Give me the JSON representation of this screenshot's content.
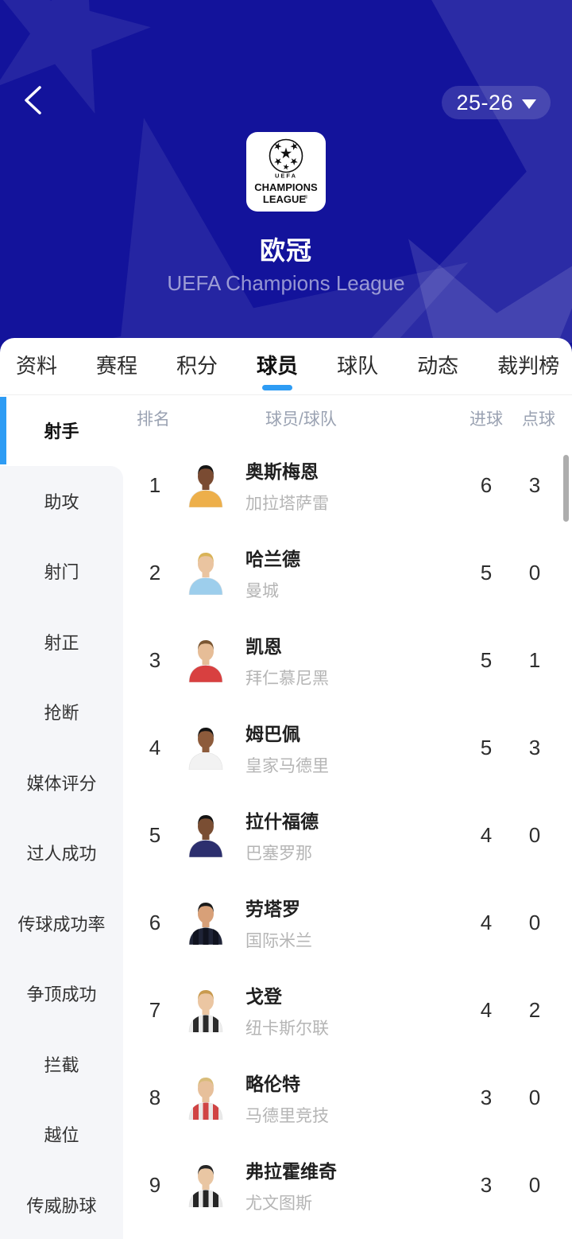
{
  "colors": {
    "header_bg": "#13139B",
    "accent": "#2E9CF4",
    "panel": "#F5F6F9",
    "scrollbar": "#ADADAD"
  },
  "header": {
    "season": "25-26",
    "title_cn": "欧冠",
    "subtitle_en": "UEFA Champions League",
    "logo": {
      "uefa": "UEFA",
      "champions": "CHAMPIONS",
      "league": "LEAGUE",
      "registered": "®"
    }
  },
  "tabs": [
    {
      "label": "资料",
      "active": false
    },
    {
      "label": "赛程",
      "active": false
    },
    {
      "label": "积分",
      "active": false
    },
    {
      "label": "球员",
      "active": true
    },
    {
      "label": "球队",
      "active": false
    },
    {
      "label": "动态",
      "active": false
    },
    {
      "label": "裁判榜",
      "active": false
    }
  ],
  "sidebar": {
    "items": [
      {
        "label": "射手",
        "selected": true
      },
      {
        "label": "助攻",
        "selected": false
      },
      {
        "label": "射门",
        "selected": false
      },
      {
        "label": "射正",
        "selected": false
      },
      {
        "label": "抢断",
        "selected": false
      },
      {
        "label": "媒体评分",
        "selected": false
      },
      {
        "label": "过人成功",
        "selected": false
      },
      {
        "label": "传球成功率",
        "selected": false
      },
      {
        "label": "争顶成功",
        "selected": false
      },
      {
        "label": "拦截",
        "selected": false
      },
      {
        "label": "越位",
        "selected": false
      },
      {
        "label": "传威胁球",
        "selected": false
      }
    ]
  },
  "table": {
    "headers": {
      "rank": "排名",
      "player_team": "球员/球队",
      "goals": "进球",
      "penalties": "点球"
    },
    "rows": [
      {
        "rank": 1,
        "player": "奥斯梅恩",
        "team": "加拉塔萨雷",
        "goals": 6,
        "penalties": 3,
        "avatar": {
          "skin": "#7A4B32",
          "hair": "#151515",
          "jersey": "#EDAF4A"
        }
      },
      {
        "rank": 2,
        "player": "哈兰德",
        "team": "曼城",
        "goals": 5,
        "penalties": 0,
        "avatar": {
          "skin": "#EAC4A0",
          "hair": "#D9B358",
          "jersey": "#9DCEEC"
        }
      },
      {
        "rank": 3,
        "player": "凯恩",
        "team": "拜仁慕尼黑",
        "goals": 5,
        "penalties": 1,
        "avatar": {
          "skin": "#E6BD97",
          "hair": "#7A5632",
          "jersey": "#D84040"
        }
      },
      {
        "rank": 4,
        "player": "姆巴佩",
        "team": "皇家马德里",
        "goals": 5,
        "penalties": 3,
        "avatar": {
          "skin": "#8D5B3B",
          "hair": "#141414",
          "jersey": "#F2F2F2"
        }
      },
      {
        "rank": 5,
        "player": "拉什福德",
        "team": "巴塞罗那",
        "goals": 4,
        "penalties": 0,
        "avatar": {
          "skin": "#7A4E33",
          "hair": "#131313",
          "jersey": "#2C2F6E"
        }
      },
      {
        "rank": 6,
        "player": "劳塔罗",
        "team": "国际米兰",
        "goals": 4,
        "penalties": 0,
        "avatar": {
          "skin": "#D8A078",
          "hair": "#1A1A1A",
          "jersey": "#1F2437",
          "jersey2": "#10131F"
        }
      },
      {
        "rank": 7,
        "player": "戈登",
        "team": "纽卡斯尔联",
        "goals": 4,
        "penalties": 2,
        "avatar": {
          "skin": "#EBC6A2",
          "hair": "#C89A4E",
          "jersey": "#EDEDED",
          "jersey2": "#2B2B2B"
        }
      },
      {
        "rank": 8,
        "player": "略伦特",
        "team": "马德里竞技",
        "goals": 3,
        "penalties": 0,
        "avatar": {
          "skin": "#E7C09B",
          "hair": "#D8BC7A",
          "jersey": "#E9E9E9",
          "jersey2": "#D04444"
        }
      },
      {
        "rank": 9,
        "player": "弗拉霍维奇",
        "team": "尤文图斯",
        "goals": 3,
        "penalties": 0,
        "avatar": {
          "skin": "#E9C6A3",
          "hair": "#262626",
          "jersey": "#E8E8E8",
          "jersey2": "#262626"
        }
      }
    ]
  }
}
